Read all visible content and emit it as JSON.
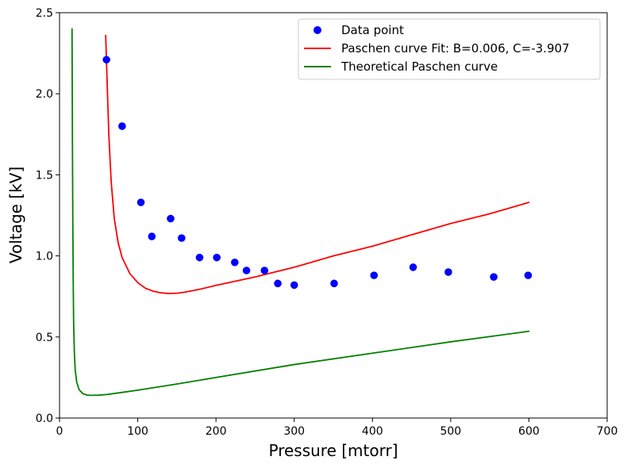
{
  "chart_data": {
    "type": "scatter+line",
    "title": "",
    "xlabel": "Pressure [mtorr]",
    "ylabel": "Voltage [kV]",
    "xlim": [
      0,
      700
    ],
    "ylim": [
      0,
      2.5
    ],
    "xticks": [
      0,
      100,
      200,
      300,
      400,
      500,
      600,
      700
    ],
    "yticks": [
      0.0,
      0.5,
      1.0,
      1.5,
      2.0,
      2.5
    ],
    "xtick_labels": [
      "0",
      "100",
      "200",
      "300",
      "400",
      "500",
      "600",
      "700"
    ],
    "ytick_labels": [
      "0.0",
      "0.5",
      "1.0",
      "1.5",
      "2.0",
      "2.5"
    ],
    "grid": false,
    "legend_position": "top-right",
    "series": [
      {
        "name": "Data point",
        "kind": "scatter",
        "color": "#0000ff",
        "x": [
          60,
          80,
          104,
          118,
          142,
          156,
          179,
          201,
          224,
          239,
          262,
          279,
          300,
          351,
          402,
          452,
          497,
          555,
          599
        ],
        "y": [
          2.21,
          1.8,
          1.33,
          1.12,
          1.23,
          1.11,
          0.99,
          0.99,
          0.96,
          0.91,
          0.91,
          0.83,
          0.82,
          0.83,
          0.88,
          0.93,
          0.9,
          0.87,
          0.88
        ]
      },
      {
        "name": "Paschen curve Fit: B=0.006, C=-3.907",
        "kind": "line",
        "color": "#ff0000",
        "x": [
          59,
          61,
          63,
          66,
          70,
          75,
          80,
          90,
          100,
          110,
          120,
          130,
          140,
          150,
          160,
          180,
          200,
          250,
          300,
          350,
          400,
          450,
          500,
          550,
          600
        ],
        "y": [
          2.36,
          2.05,
          1.75,
          1.46,
          1.23,
          1.08,
          0.99,
          0.89,
          0.835,
          0.8,
          0.782,
          0.772,
          0.768,
          0.77,
          0.776,
          0.795,
          0.818,
          0.87,
          0.93,
          1.0,
          1.06,
          1.13,
          1.2,
          1.26,
          1.33
        ]
      },
      {
        "name": "Theoretical Paschen curve",
        "kind": "line",
        "color": "#008000",
        "x": [
          16,
          16.5,
          17,
          17.5,
          18,
          19,
          20,
          22,
          25,
          30,
          35,
          40,
          50,
          60,
          80,
          100,
          150,
          200,
          300,
          400,
          500,
          600
        ],
        "y": [
          2.4,
          1.7,
          1.2,
          0.85,
          0.6,
          0.4,
          0.3,
          0.22,
          0.175,
          0.15,
          0.142,
          0.14,
          0.141,
          0.145,
          0.158,
          0.172,
          0.21,
          0.25,
          0.33,
          0.4,
          0.47,
          0.535
        ]
      }
    ]
  }
}
